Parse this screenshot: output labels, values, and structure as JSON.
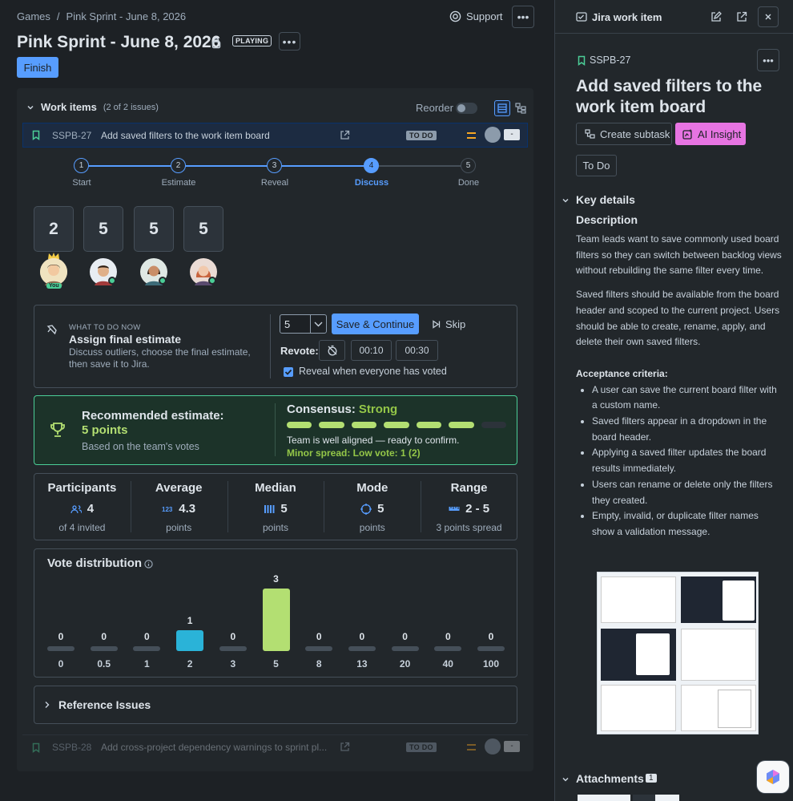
{
  "breadcrumb": {
    "games": "Games",
    "sep": "/",
    "sprint": "Pink Sprint - June 8, 2026"
  },
  "header": {
    "title": "Pink Sprint - June 8, 2026",
    "status": "PLAYING",
    "support": "Support",
    "finish": "Finish"
  },
  "work_items": {
    "title": "Work items",
    "count": "(2 of 2 issues)",
    "reorder": "Reorder",
    "items": [
      {
        "key": "SSPB-27",
        "summary": "Add saved filters to the work item board",
        "status": "TO DO",
        "points": "-"
      },
      {
        "key": "SSPB-28",
        "summary": "Add cross-project dependency warnings to sprint pl...",
        "status": "TO DO",
        "points": "-"
      }
    ]
  },
  "steps": [
    {
      "n": "1",
      "label": "Start"
    },
    {
      "n": "2",
      "label": "Estimate"
    },
    {
      "n": "3",
      "label": "Reveal"
    },
    {
      "n": "4",
      "label": "Discuss"
    },
    {
      "n": "5",
      "label": "Done"
    }
  ],
  "active_step": 4,
  "votes": [
    "2",
    "5",
    "5",
    "5"
  ],
  "you_label": "You",
  "what_now": {
    "eyebrow": "WHAT TO DO NOW",
    "title": "Assign final estimate",
    "desc": "Discuss outliers, choose the final estimate, then save it to Jira.",
    "selected": "5",
    "save": "Save & Continue",
    "skip": "Skip",
    "revote": "Revote:",
    "t1": "00:10",
    "t2": "00:30",
    "reveal": "Reveal when everyone has voted"
  },
  "recommend": {
    "title": "Recommended estimate:",
    "value": "5 points",
    "sub": "Based on the team's votes",
    "consensus_label": "Consensus:",
    "consensus": "Strong",
    "segments_filled": 6,
    "segments_total": 7,
    "aligned": "Team is well aligned — ready to confirm.",
    "spread": "Minor spread: Low vote: 1 (2)"
  },
  "stats": [
    {
      "h": "Participants",
      "v": "4",
      "s": "of 4 invited",
      "icon": "people-icon"
    },
    {
      "h": "Average",
      "v": "4.3",
      "s": "points",
      "icon": "numbers-icon"
    },
    {
      "h": "Median",
      "v": "5",
      "s": "points",
      "icon": "columns-icon"
    },
    {
      "h": "Mode",
      "v": "5",
      "s": "points",
      "icon": "target-icon"
    },
    {
      "h": "Range",
      "v": "2 - 5",
      "s": "3 points spread",
      "icon": "ruler-icon"
    }
  ],
  "chart_data": {
    "type": "bar",
    "title": "Vote distribution",
    "categories": [
      "0",
      "0.5",
      "1",
      "2",
      "3",
      "5",
      "8",
      "13",
      "20",
      "40",
      "100"
    ],
    "values": [
      0,
      0,
      0,
      1,
      0,
      3,
      0,
      0,
      0,
      0,
      0
    ],
    "colors": {
      "2": "#2ab3d8",
      "5": "#b3df72",
      "zero": "#454f59"
    }
  },
  "reference": "Reference Issues",
  "right": {
    "header": "Jira work item",
    "key": "SSPB-27",
    "title": "Add saved filters to the work item board",
    "create_subtask": "Create subtask",
    "ai": "AI Insight",
    "status": "To Do",
    "key_details": "Key details",
    "description": "Description",
    "p1": "Team leads want to save commonly used board filters so they can switch between backlog views without rebuilding the same filter every time.",
    "p2": "Saved filters should be available from the board header and scoped to the current project. Users should be able to create, rename, apply, and delete their own saved filters.",
    "ac": "Acceptance criteria:",
    "criteria": [
      "A user can save the current board filter with a custom name.",
      "Saved filters appear in a dropdown in the board header.",
      "Applying a saved filter updates the board results immediately.",
      "Users can rename or delete only the filters they created.",
      "Empty, invalid, or duplicate filter names show a validation message."
    ],
    "attachments": "Attachments",
    "attach_count": "1"
  }
}
